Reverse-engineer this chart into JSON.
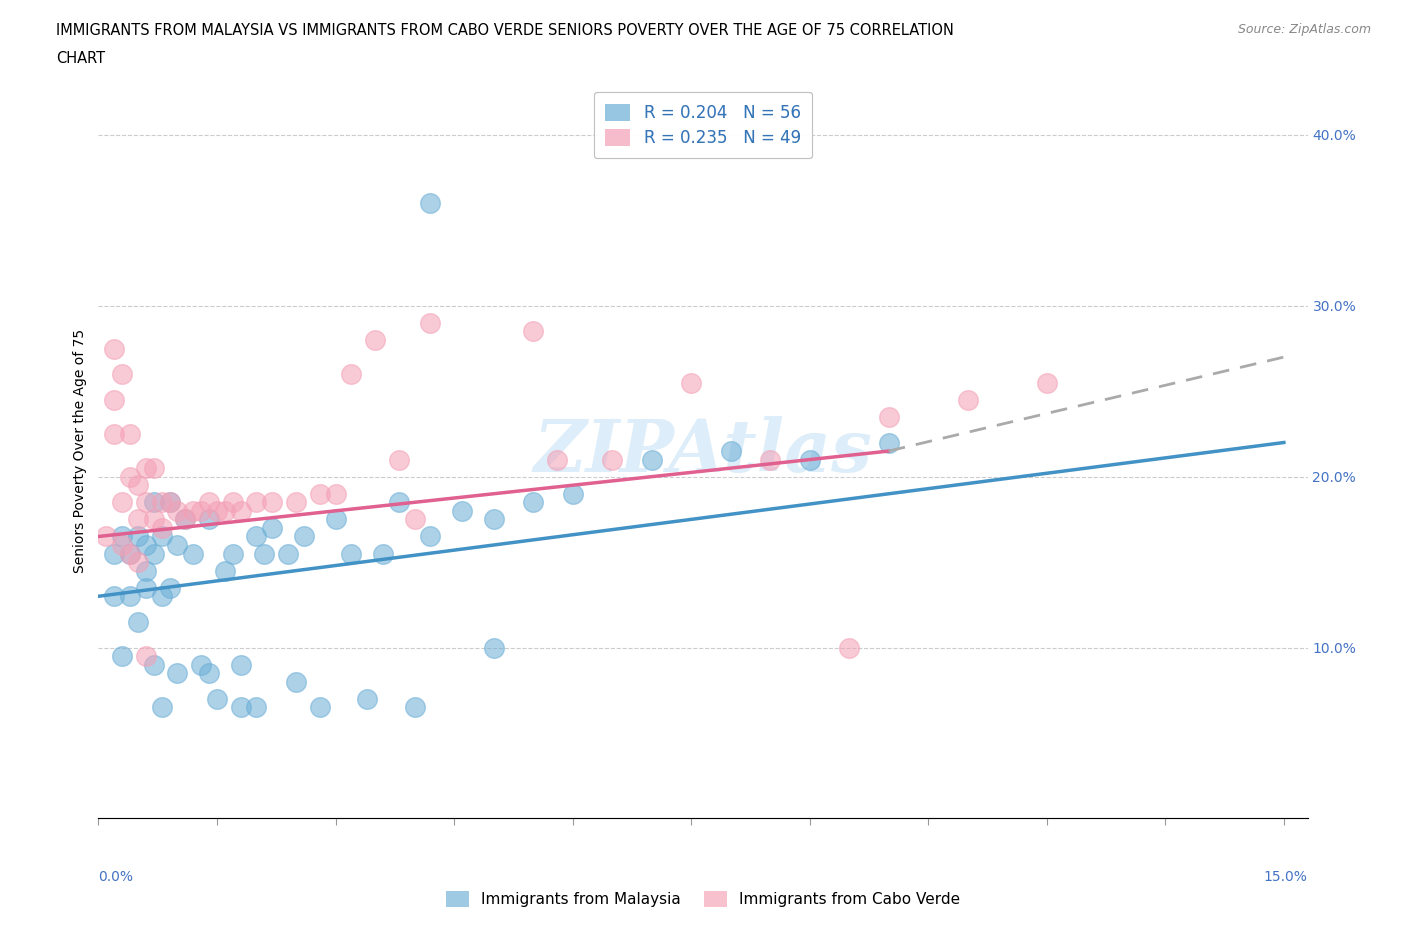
{
  "title_line1": "IMMIGRANTS FROM MALAYSIA VS IMMIGRANTS FROM CABO VERDE SENIORS POVERTY OVER THE AGE OF 75 CORRELATION",
  "title_line2": "CHART",
  "source": "Source: ZipAtlas.com",
  "ylabel": "Seniors Poverty Over the Age of 75",
  "malaysia_color": "#6baed6",
  "caboverde_color": "#f4a0b5",
  "malaysia_R": 0.204,
  "malaysia_N": 56,
  "caboverde_R": 0.235,
  "caboverde_N": 49,
  "watermark": "ZIPAtlas",
  "background_color": "#ffffff",
  "xlim": [
    0.0,
    0.15
  ],
  "ylim": [
    0.0,
    0.42
  ],
  "ytick_vals": [
    0.1,
    0.2,
    0.3,
    0.4
  ],
  "ytick_labels": [
    "10.0%",
    "20.0%",
    "30.0%",
    "40.0%"
  ],
  "malaysia_trend": [
    0.0,
    0.13,
    0.15,
    0.22
  ],
  "caboverde_trend_solid": [
    0.0,
    0.165,
    0.1,
    0.215
  ],
  "caboverde_trend_dash": [
    0.1,
    0.215,
    0.15,
    0.27
  ],
  "malaysia_scatter": [
    [
      0.002,
      0.155
    ],
    [
      0.002,
      0.13
    ],
    [
      0.003,
      0.165
    ],
    [
      0.003,
      0.095
    ],
    [
      0.004,
      0.155
    ],
    [
      0.004,
      0.13
    ],
    [
      0.005,
      0.165
    ],
    [
      0.005,
      0.115
    ],
    [
      0.006,
      0.16
    ],
    [
      0.006,
      0.135
    ],
    [
      0.006,
      0.145
    ],
    [
      0.007,
      0.185
    ],
    [
      0.007,
      0.09
    ],
    [
      0.007,
      0.155
    ],
    [
      0.008,
      0.165
    ],
    [
      0.008,
      0.13
    ],
    [
      0.008,
      0.065
    ],
    [
      0.009,
      0.185
    ],
    [
      0.009,
      0.135
    ],
    [
      0.01,
      0.085
    ],
    [
      0.01,
      0.16
    ],
    [
      0.011,
      0.175
    ],
    [
      0.012,
      0.155
    ],
    [
      0.013,
      0.09
    ],
    [
      0.014,
      0.085
    ],
    [
      0.014,
      0.175
    ],
    [
      0.016,
      0.145
    ],
    [
      0.017,
      0.155
    ],
    [
      0.018,
      0.09
    ],
    [
      0.018,
      0.065
    ],
    [
      0.02,
      0.165
    ],
    [
      0.021,
      0.155
    ],
    [
      0.022,
      0.17
    ],
    [
      0.024,
      0.155
    ],
    [
      0.026,
      0.165
    ],
    [
      0.028,
      0.065
    ],
    [
      0.03,
      0.175
    ],
    [
      0.032,
      0.155
    ],
    [
      0.034,
      0.07
    ],
    [
      0.036,
      0.155
    ],
    [
      0.038,
      0.185
    ],
    [
      0.04,
      0.065
    ],
    [
      0.042,
      0.165
    ],
    [
      0.046,
      0.18
    ],
    [
      0.05,
      0.175
    ],
    [
      0.055,
      0.185
    ],
    [
      0.06,
      0.19
    ],
    [
      0.042,
      0.36
    ],
    [
      0.07,
      0.21
    ],
    [
      0.08,
      0.215
    ],
    [
      0.09,
      0.21
    ],
    [
      0.1,
      0.22
    ],
    [
      0.015,
      0.07
    ],
    [
      0.02,
      0.065
    ],
    [
      0.025,
      0.08
    ],
    [
      0.05,
      0.1
    ]
  ],
  "caboverde_scatter": [
    [
      0.001,
      0.165
    ],
    [
      0.002,
      0.275
    ],
    [
      0.002,
      0.245
    ],
    [
      0.002,
      0.225
    ],
    [
      0.003,
      0.26
    ],
    [
      0.003,
      0.185
    ],
    [
      0.003,
      0.16
    ],
    [
      0.004,
      0.225
    ],
    [
      0.004,
      0.2
    ],
    [
      0.004,
      0.155
    ],
    [
      0.005,
      0.195
    ],
    [
      0.005,
      0.175
    ],
    [
      0.005,
      0.15
    ],
    [
      0.006,
      0.205
    ],
    [
      0.006,
      0.185
    ],
    [
      0.006,
      0.095
    ],
    [
      0.007,
      0.205
    ],
    [
      0.007,
      0.175
    ],
    [
      0.008,
      0.185
    ],
    [
      0.008,
      0.17
    ],
    [
      0.009,
      0.185
    ],
    [
      0.01,
      0.18
    ],
    [
      0.011,
      0.175
    ],
    [
      0.012,
      0.18
    ],
    [
      0.013,
      0.18
    ],
    [
      0.014,
      0.185
    ],
    [
      0.015,
      0.18
    ],
    [
      0.016,
      0.18
    ],
    [
      0.017,
      0.185
    ],
    [
      0.018,
      0.18
    ],
    [
      0.02,
      0.185
    ],
    [
      0.022,
      0.185
    ],
    [
      0.025,
      0.185
    ],
    [
      0.028,
      0.19
    ],
    [
      0.03,
      0.19
    ],
    [
      0.032,
      0.26
    ],
    [
      0.035,
      0.28
    ],
    [
      0.038,
      0.21
    ],
    [
      0.04,
      0.175
    ],
    [
      0.042,
      0.29
    ],
    [
      0.055,
      0.285
    ],
    [
      0.058,
      0.21
    ],
    [
      0.065,
      0.21
    ],
    [
      0.075,
      0.255
    ],
    [
      0.085,
      0.21
    ],
    [
      0.095,
      0.1
    ],
    [
      0.1,
      0.235
    ],
    [
      0.11,
      0.245
    ],
    [
      0.12,
      0.255
    ]
  ]
}
